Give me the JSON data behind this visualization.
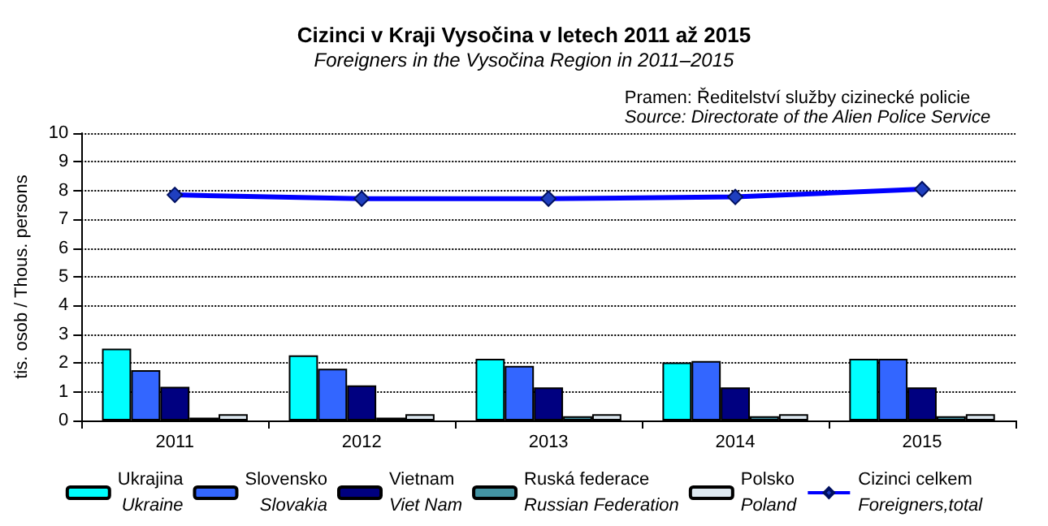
{
  "chart_data": {
    "type": "bar",
    "title": "Cizinci v Kraji Vysočina v letech 2011 až 2015",
    "subtitle": "Foreigners in the Vysočina Region in 2011–2015",
    "annotations": [
      "Pramen: Ředitelství služby cizinecké policie\nSource: Directorate of the Alien Police Service"
    ],
    "ylabel": "tis. osob / Thous. persons",
    "categories": [
      "2011",
      "2012",
      "2013",
      "2014",
      "2015"
    ],
    "series": [
      {
        "name": "Ukrajina\nUkraine",
        "color": "#00ffff",
        "values": [
          2.5,
          2.27,
          2.15,
          2.02,
          2.15
        ]
      },
      {
        "name": "Slovensko\nSlovakia",
        "color": "#3366ff",
        "values": [
          1.75,
          1.8,
          1.9,
          2.07,
          2.15
        ]
      },
      {
        "name": "Vietnam\nViet Nam",
        "color": "#000080",
        "values": [
          1.17,
          1.22,
          1.15,
          1.15,
          1.15
        ]
      },
      {
        "name": "Ruská federace\nRussian Federation",
        "color": "#4393a3",
        "values": [
          0.1,
          0.1,
          0.15,
          0.15,
          0.15
        ]
      },
      {
        "name": "Polsko\nPoland",
        "color": "#dde8f0",
        "values": [
          0.22,
          0.22,
          0.22,
          0.22,
          0.22
        ]
      },
      {
        "name": "Cizinci celkem\nForeigners,total",
        "type": "line",
        "color": "#0000ff",
        "marker": "diamond",
        "values": [
          7.85,
          7.72,
          7.72,
          7.78,
          8.05
        ]
      }
    ],
    "ylim": [
      0,
      10
    ],
    "yticks": [
      0,
      1,
      2,
      3,
      4,
      5,
      6,
      7,
      8,
      9,
      10
    ],
    "grid": "y",
    "legend": "bottom"
  }
}
